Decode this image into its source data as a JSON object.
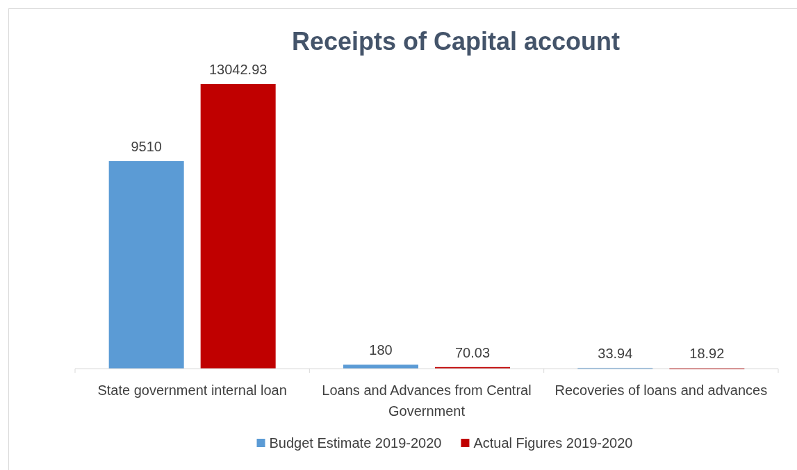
{
  "chart_data": {
    "type": "bar",
    "title": "Receipts of Capital account",
    "categories": [
      "State government internal loan",
      "Loans and Advances from Central Government",
      "Recoveries of loans and advances"
    ],
    "series": [
      {
        "name": "Budget Estimate 2019-2020",
        "color": "#5b9bd5",
        "values": [
          9510,
          180,
          33.94
        ]
      },
      {
        "name": "Actual Figures 2019-2020",
        "color": "#c00000",
        "values": [
          13042.93,
          70.03,
          18.92
        ]
      }
    ],
    "data_labels": true,
    "legend": "bottom"
  }
}
